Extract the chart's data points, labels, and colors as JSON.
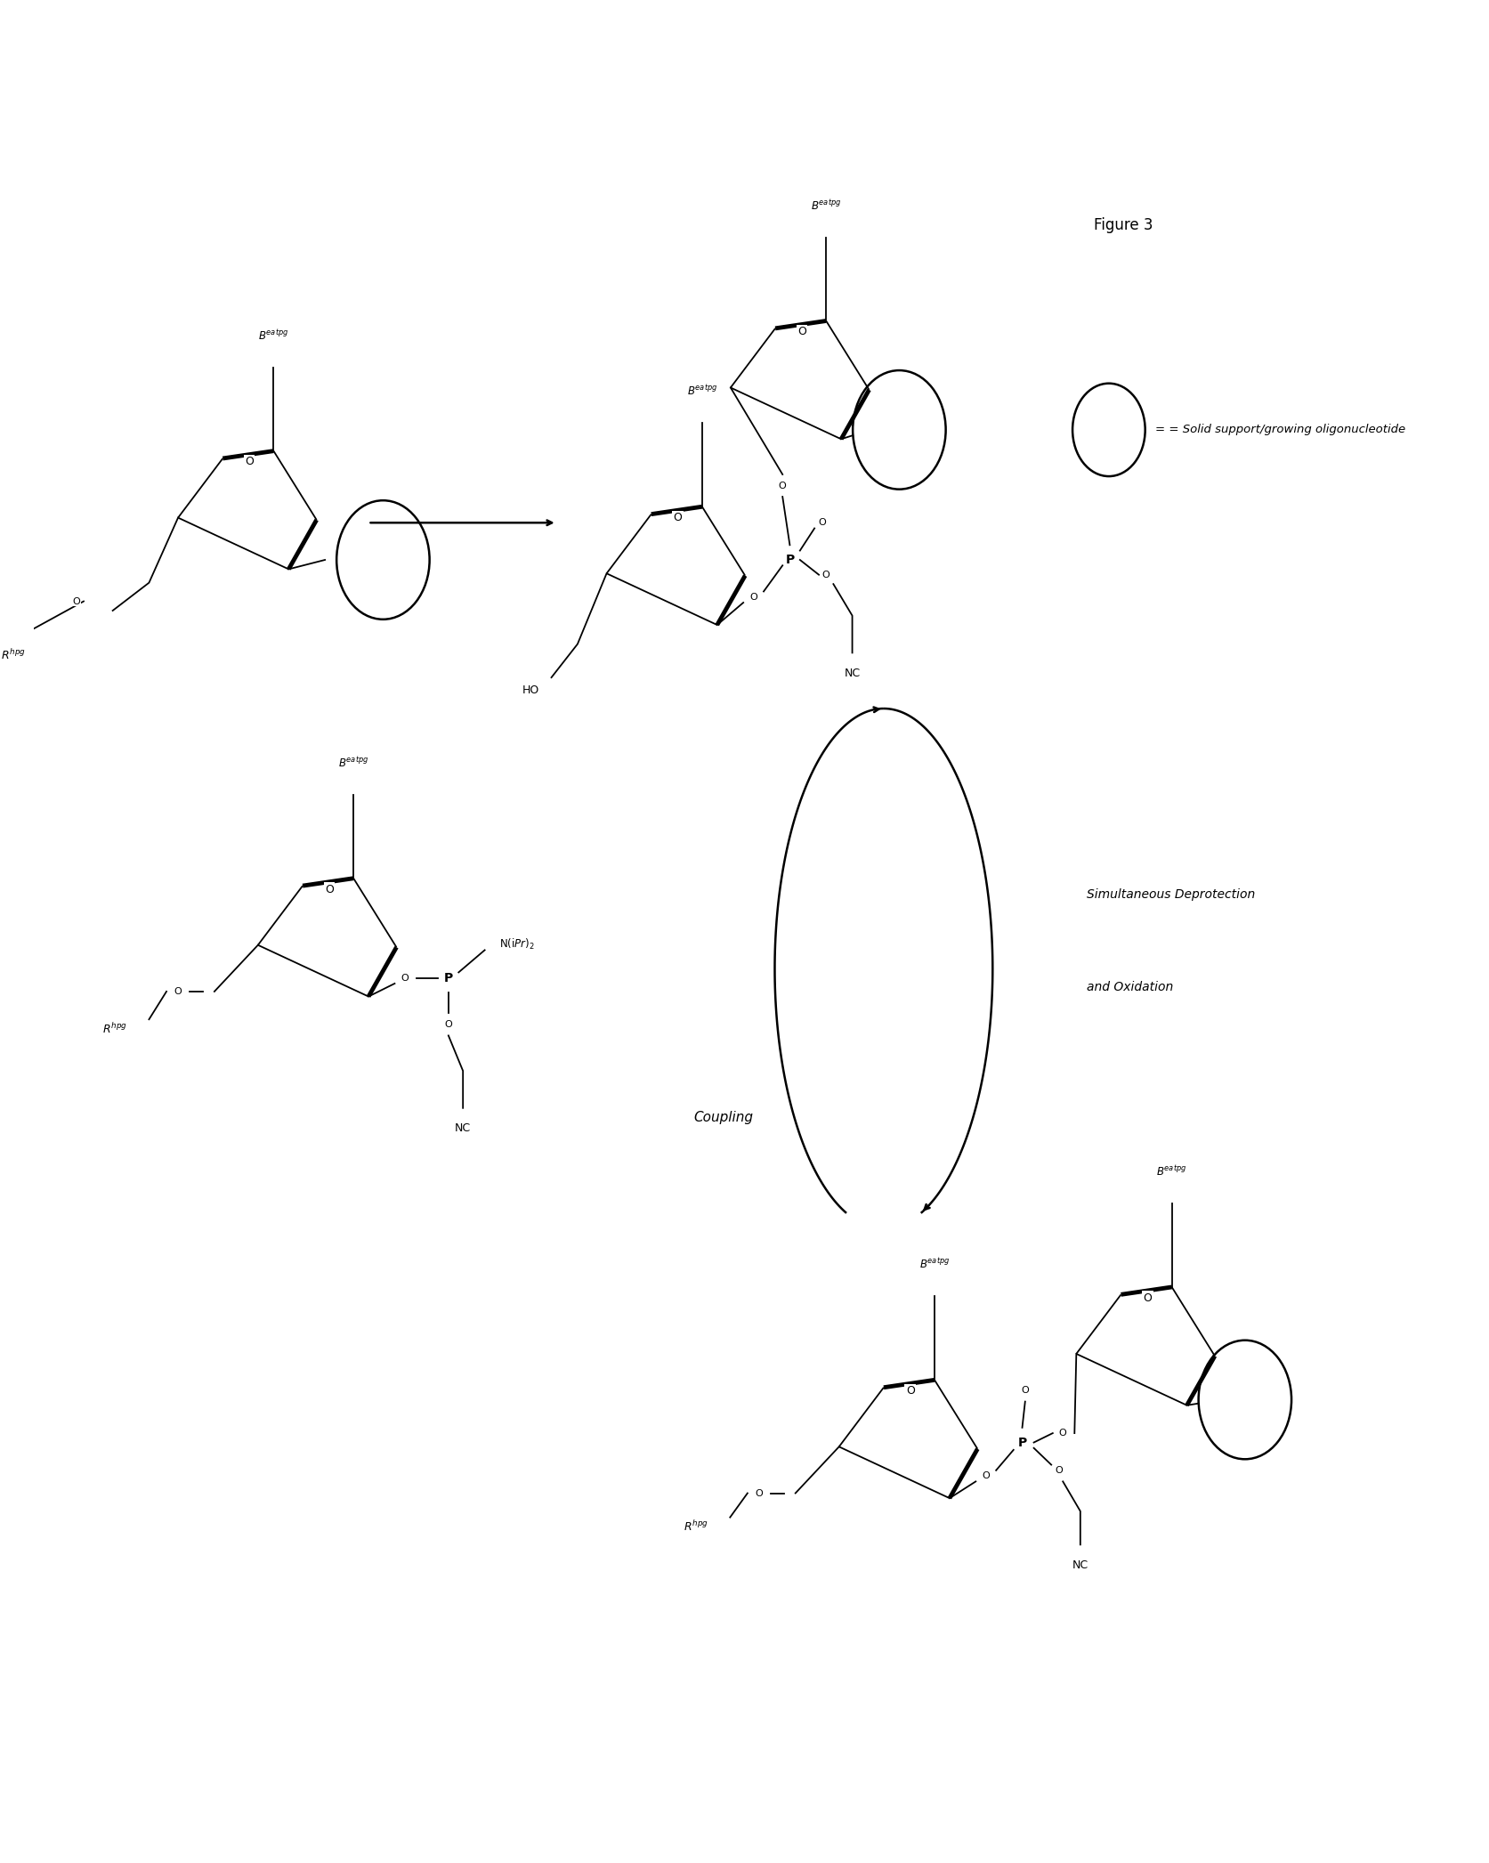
{
  "figure_title": "Figure 3",
  "legend_text": "= Solid support/growing oligonucleotide",
  "coupling_label": "Coupling",
  "simult_label1": "Simultaneous Deprotection",
  "simult_label2": "and Oxidation",
  "bg_color": "#ffffff",
  "ink_color": "#000000",
  "fig_width": 16.73,
  "fig_height": 20.93,
  "dpi": 100,
  "lw_thin": 1.3,
  "lw_thick": 3.5,
  "lw_medium": 1.8,
  "sugar_scale": 1.0
}
